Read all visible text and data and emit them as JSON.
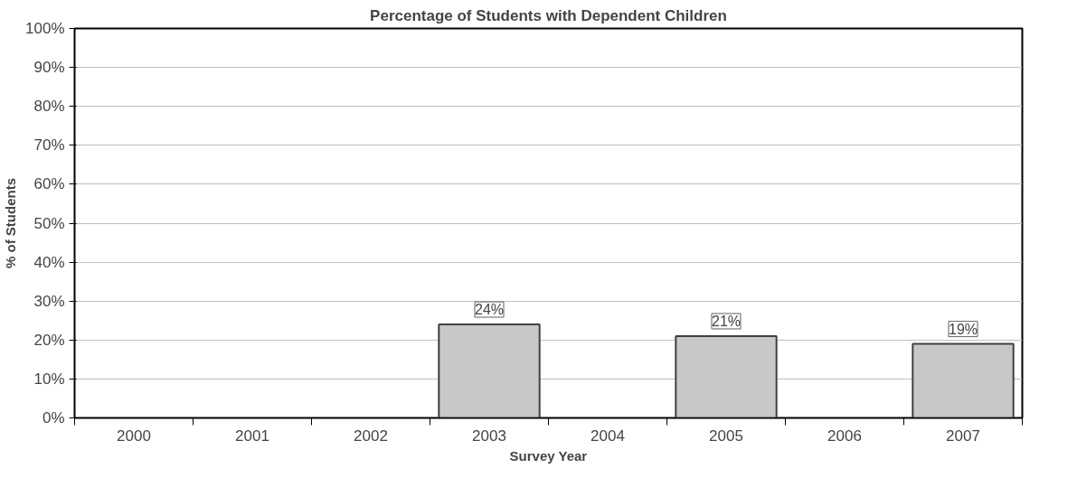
{
  "chart_data": {
    "type": "bar",
    "title": "Percentage of Students with Dependent Children",
    "xlabel": "Survey Year",
    "ylabel": "% of Students",
    "categories": [
      "2000",
      "2001",
      "2002",
      "2003",
      "2004",
      "2005",
      "2006",
      "2007"
    ],
    "values": [
      null,
      null,
      null,
      24,
      null,
      21,
      null,
      19
    ],
    "value_labels": [
      null,
      null,
      null,
      "24%",
      null,
      "21%",
      null,
      "19%"
    ],
    "color": "#c8c8c8",
    "ylim": [
      0,
      100
    ],
    "yticks": [
      {
        "value": 0,
        "label": "0%"
      },
      {
        "value": 10,
        "label": "10%"
      },
      {
        "value": 20,
        "label": "20%"
      },
      {
        "value": 30,
        "label": "30%"
      },
      {
        "value": 40,
        "label": "40%"
      },
      {
        "value": 50,
        "label": "50%"
      },
      {
        "value": 60,
        "label": "60%"
      },
      {
        "value": 70,
        "label": "70%"
      },
      {
        "value": 80,
        "label": "80%"
      },
      {
        "value": 90,
        "label": "90%"
      },
      {
        "value": 100,
        "label": "100%"
      }
    ],
    "grid": "y"
  }
}
